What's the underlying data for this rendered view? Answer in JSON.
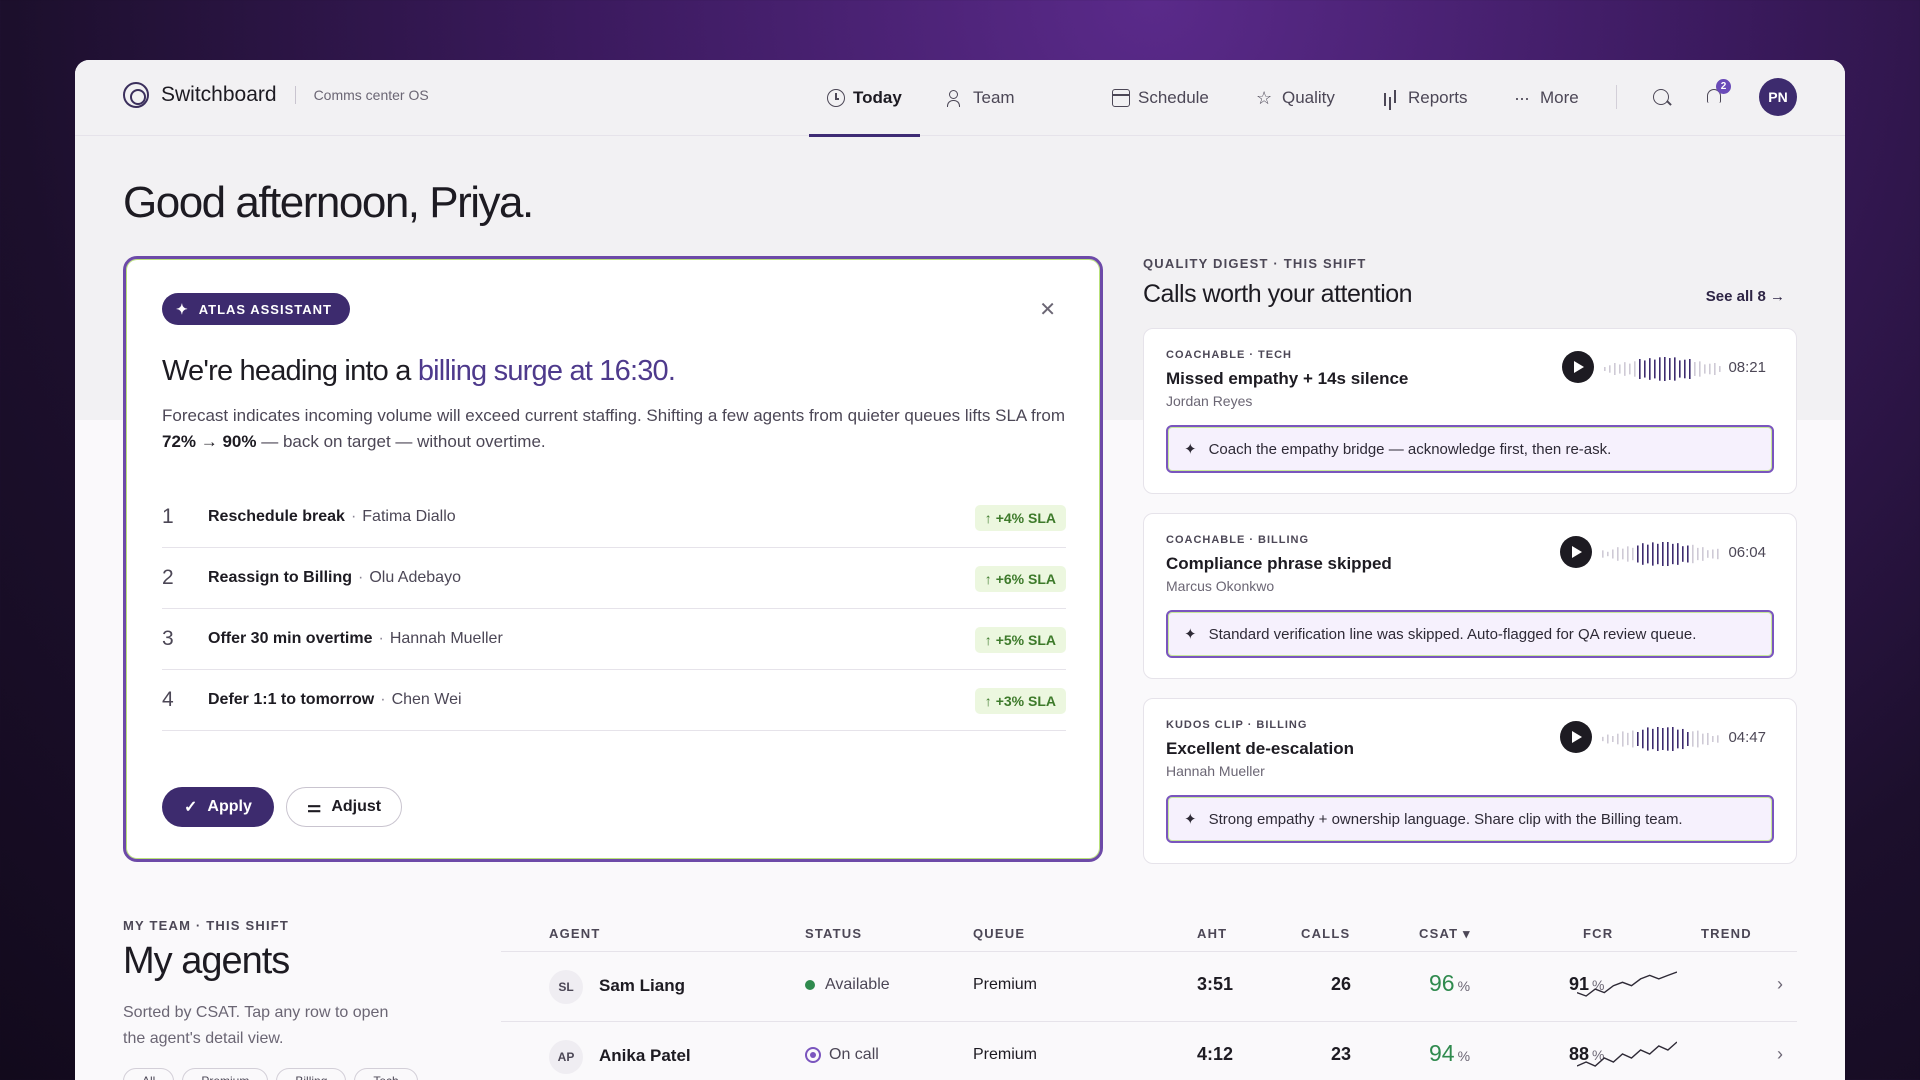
{
  "brand": {
    "name": "Switchboard",
    "subtitle": "Comms center OS"
  },
  "nav": {
    "items": [
      {
        "label": "Today",
        "icon": "clock-icon",
        "active": true
      },
      {
        "label": "Team",
        "icon": "team-icon"
      },
      {
        "label": "Schedule",
        "icon": "calendar-icon"
      },
      {
        "label": "Quality",
        "icon": "star-icon"
      },
      {
        "label": "Reports",
        "icon": "bar-chart-icon"
      },
      {
        "label": "More",
        "icon": "more-icon"
      }
    ],
    "notification_count": "2",
    "user_initials": "PN"
  },
  "greeting": "Good afternoon, Priya.",
  "assistant": {
    "chip": "ATLAS ASSISTANT",
    "headline_pre": "We're heading into a ",
    "headline_highlight": "billing surge at 16:30.",
    "body_pre": "Forecast indicates incoming volume will exceed current staffing. Shifting a few agents from quieter queues lifts SLA from ",
    "body_bold": "72% → 90%",
    "body_post": " — back on target — without overtime.",
    "steps": [
      {
        "num": "1",
        "title": "Reschedule break",
        "person": "Fatima Diallo",
        "badge": "+4% SLA"
      },
      {
        "num": "2",
        "title": "Reassign to Billing",
        "person": "Olu Adebayo",
        "badge": "+6% SLA"
      },
      {
        "num": "3",
        "title": "Offer 30 min overtime",
        "person": "Hannah Mueller",
        "badge": "+5% SLA"
      },
      {
        "num": "4",
        "title": "Defer 1:1 to tomorrow",
        "person": "Chen Wei",
        "badge": "+3% SLA"
      }
    ],
    "apply_label": "Apply",
    "adjust_label": "Adjust"
  },
  "quality": {
    "eyebrow": "QUALITY DIGEST · THIS SHIFT",
    "title": "Calls worth your attention",
    "see_all": "See all 8 →",
    "calls": [
      {
        "tag": "COACHABLE · TECH",
        "title": "Missed empathy + 14s silence",
        "person": "Jordan Reyes",
        "time": "08:21",
        "hint": "Coach the empathy bridge — acknowledge first, then re-ask."
      },
      {
        "tag": "COACHABLE · BILLING",
        "title": "Compliance phrase skipped",
        "person": "Marcus Okonkwo",
        "time": "06:04",
        "hint": "Standard verification line was skipped. Auto-flagged for QA review queue."
      },
      {
        "tag": "KUDOS CLIP · BILLING",
        "title": "Excellent de-escalation",
        "person": "Hannah Mueller",
        "time": "04:47",
        "hint": "Strong empathy + ownership language. Share clip with the Billing team."
      }
    ]
  },
  "team": {
    "eyebrow": "MY TEAM · THIS SHIFT",
    "title": "My agents",
    "desc": "Sorted by CSAT. Tap any row to open the agent's detail view.",
    "pills": [
      "All",
      "Premium",
      "Billing",
      "Tech"
    ],
    "columns": {
      "agent": "AGENT",
      "status": "STATUS",
      "queue": "QUEUE",
      "aht": "AHT",
      "calls": "CALLS",
      "csat": "CSAT ▾",
      "fcr": "FCR",
      "trend": "TREND"
    },
    "rows": [
      {
        "initials": "SL",
        "name": "Sam Liang",
        "status": "Available",
        "queue": "Premium",
        "aht": "3:51",
        "calls": "26",
        "csat": "96",
        "fcr": "91",
        "trend": [
          4,
          3,
          5,
          4,
          6,
          7,
          6,
          8,
          9,
          8,
          9,
          10
        ]
      },
      {
        "initials": "AP",
        "name": "Anika Patel",
        "status": "On call",
        "queue": "Premium",
        "aht": "4:12",
        "calls": "23",
        "csat": "94",
        "fcr": "88",
        "trend": [
          3,
          4,
          3,
          5,
          4,
          6,
          5,
          7,
          6,
          8,
          7,
          9
        ]
      }
    ],
    "pct_unit": "%"
  },
  "colors": {
    "accent": "#3d2b6e",
    "highlight": "#4e3a8c",
    "positive": "#2f8a4e",
    "border_glow": "#6d4aa8"
  }
}
